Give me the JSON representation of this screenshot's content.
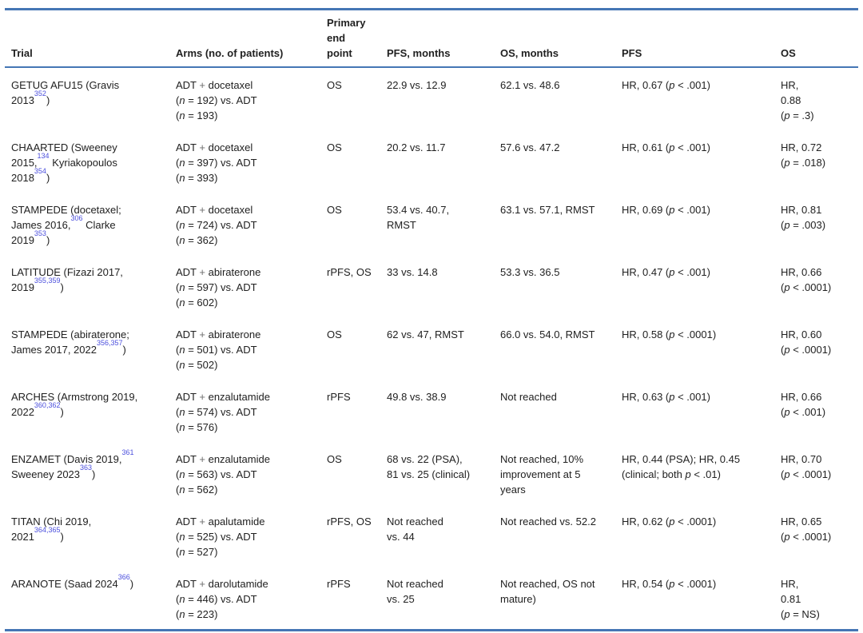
{
  "colors": {
    "rule_blue": "#4576b5",
    "ref_blue": "#4b4fdd",
    "text": "#212121",
    "plus_gray": "#6e6e6e"
  },
  "table": {
    "headers": [
      "Trial",
      "Arms (no. of patients)",
      "Primary end point",
      "PFS, months",
      "OS, months",
      "PFS",
      "OS"
    ],
    "rows": [
      {
        "trial": [
          {
            "t": "GETUG AFU15 (Gravis"
          },
          {
            "s": "br"
          },
          {
            "t": "2013"
          },
          {
            "t": "352",
            "s": "sup"
          },
          {
            "t": ")"
          }
        ],
        "arms": [
          {
            "t": "ADT "
          },
          {
            "t": "+",
            "s": "plus"
          },
          {
            "t": " docetaxel"
          },
          {
            "s": "br"
          },
          {
            "t": "("
          },
          {
            "t": "n",
            "s": "i"
          },
          {
            "t": " = 192) vs. ADT"
          },
          {
            "s": "br"
          },
          {
            "t": "("
          },
          {
            "t": "n",
            "s": "i"
          },
          {
            "t": " = 193)"
          }
        ],
        "endpoint": [
          {
            "t": "OS"
          }
        ],
        "pfs_months": [
          {
            "t": "22.9 vs. 12.9"
          }
        ],
        "os_months": [
          {
            "t": "62.1 vs. 48.6"
          }
        ],
        "pfs_hr": [
          {
            "t": "HR, 0.67 ("
          },
          {
            "t": "p",
            "s": "i"
          },
          {
            "t": " < .001)"
          }
        ],
        "os_hr": [
          {
            "t": "HR,"
          },
          {
            "s": "br"
          },
          {
            "t": "0.88"
          },
          {
            "s": "br"
          },
          {
            "t": "("
          },
          {
            "t": "p",
            "s": "i"
          },
          {
            "t": " = .3)"
          }
        ]
      },
      {
        "trial": [
          {
            "t": "CHAARTED (Sweeney"
          },
          {
            "s": "br"
          },
          {
            "t": "2015,"
          },
          {
            "t": "134",
            "s": "sup"
          },
          {
            "t": " Kyriakopoulos"
          },
          {
            "s": "br"
          },
          {
            "t": "2018"
          },
          {
            "t": "354",
            "s": "sup"
          },
          {
            "t": ")"
          }
        ],
        "arms": [
          {
            "t": "ADT "
          },
          {
            "t": "+",
            "s": "plus"
          },
          {
            "t": " docetaxel"
          },
          {
            "s": "br"
          },
          {
            "t": "("
          },
          {
            "t": "n",
            "s": "i"
          },
          {
            "t": " = 397) vs. ADT"
          },
          {
            "s": "br"
          },
          {
            "t": "("
          },
          {
            "t": "n",
            "s": "i"
          },
          {
            "t": " = 393)"
          }
        ],
        "endpoint": [
          {
            "t": "OS"
          }
        ],
        "pfs_months": [
          {
            "t": "20.2 vs. 11.7"
          }
        ],
        "os_months": [
          {
            "t": "57.6 vs. 47.2"
          }
        ],
        "pfs_hr": [
          {
            "t": "HR, 0.61 ("
          },
          {
            "t": "p",
            "s": "i"
          },
          {
            "t": " < .001)"
          }
        ],
        "os_hr": [
          {
            "t": "HR, 0.72"
          },
          {
            "s": "br"
          },
          {
            "t": "("
          },
          {
            "t": "p",
            "s": "i"
          },
          {
            "t": " = .018)"
          }
        ]
      },
      {
        "trial": [
          {
            "t": "STAMPEDE (docetaxel;"
          },
          {
            "s": "br"
          },
          {
            "t": "James 2016,"
          },
          {
            "t": "306",
            "s": "sup"
          },
          {
            "t": " Clarke"
          },
          {
            "s": "br"
          },
          {
            "t": "2019"
          },
          {
            "t": "353",
            "s": "sup"
          },
          {
            "t": ")"
          }
        ],
        "arms": [
          {
            "t": "ADT "
          },
          {
            "t": "+",
            "s": "plus"
          },
          {
            "t": " docetaxel"
          },
          {
            "s": "br"
          },
          {
            "t": "("
          },
          {
            "t": "n",
            "s": "i"
          },
          {
            "t": " = 724) vs. ADT"
          },
          {
            "s": "br"
          },
          {
            "t": "("
          },
          {
            "t": "n",
            "s": "i"
          },
          {
            "t": " = 362)"
          }
        ],
        "endpoint": [
          {
            "t": "OS"
          }
        ],
        "pfs_months": [
          {
            "t": "53.4 vs. 40.7,"
          },
          {
            "s": "br"
          },
          {
            "t": "RMST"
          }
        ],
        "os_months": [
          {
            "t": "63.1 vs. 57.1, RMST"
          }
        ],
        "pfs_hr": [
          {
            "t": "HR, 0.69 ("
          },
          {
            "t": "p",
            "s": "i"
          },
          {
            "t": " < .001)"
          }
        ],
        "os_hr": [
          {
            "t": "HR, 0.81"
          },
          {
            "s": "br"
          },
          {
            "t": "("
          },
          {
            "t": "p",
            "s": "i"
          },
          {
            "t": " = .003)"
          }
        ]
      },
      {
        "trial": [
          {
            "t": "LATITUDE (Fizazi 2017,"
          },
          {
            "s": "br"
          },
          {
            "t": "2019"
          },
          {
            "t": "355,359",
            "s": "sup"
          },
          {
            "t": ")"
          }
        ],
        "arms": [
          {
            "t": "ADT "
          },
          {
            "t": "+",
            "s": "plus"
          },
          {
            "t": " abiraterone"
          },
          {
            "s": "br"
          },
          {
            "t": "("
          },
          {
            "t": "n",
            "s": "i"
          },
          {
            "t": " = 597) vs. ADT"
          },
          {
            "s": "br"
          },
          {
            "t": "("
          },
          {
            "t": "n",
            "s": "i"
          },
          {
            "t": " = 602)"
          }
        ],
        "endpoint": [
          {
            "t": "rPFS, OS"
          }
        ],
        "pfs_months": [
          {
            "t": "33 vs. 14.8"
          }
        ],
        "os_months": [
          {
            "t": "53.3 vs. 36.5"
          }
        ],
        "pfs_hr": [
          {
            "t": "HR, 0.47 ("
          },
          {
            "t": "p",
            "s": "i"
          },
          {
            "t": " < .001)"
          }
        ],
        "os_hr": [
          {
            "t": "HR, 0.66"
          },
          {
            "s": "br"
          },
          {
            "t": "("
          },
          {
            "t": "p",
            "s": "i"
          },
          {
            "t": " < .0001)"
          }
        ]
      },
      {
        "trial": [
          {
            "t": "STAMPEDE (abiraterone;"
          },
          {
            "s": "br"
          },
          {
            "t": "James 2017, 2022"
          },
          {
            "t": "356,357",
            "s": "sup"
          },
          {
            "t": ")"
          }
        ],
        "arms": [
          {
            "t": "ADT "
          },
          {
            "t": "+",
            "s": "plus"
          },
          {
            "t": " abiraterone"
          },
          {
            "s": "br"
          },
          {
            "t": "("
          },
          {
            "t": "n",
            "s": "i"
          },
          {
            "t": " = 501) vs. ADT"
          },
          {
            "s": "br"
          },
          {
            "t": "("
          },
          {
            "t": "n",
            "s": "i"
          },
          {
            "t": " = 502)"
          }
        ],
        "endpoint": [
          {
            "t": "OS"
          }
        ],
        "pfs_months": [
          {
            "t": "62 vs. 47, RMST"
          }
        ],
        "os_months": [
          {
            "t": "66.0 vs. 54.0, RMST"
          }
        ],
        "pfs_hr": [
          {
            "t": "HR, 0.58 ("
          },
          {
            "t": "p",
            "s": "i"
          },
          {
            "t": " < .0001)"
          }
        ],
        "os_hr": [
          {
            "t": "HR, 0.60"
          },
          {
            "s": "br"
          },
          {
            "t": "("
          },
          {
            "t": "p",
            "s": "i"
          },
          {
            "t": " < .0001)"
          }
        ]
      },
      {
        "trial": [
          {
            "t": "ARCHES (Armstrong 2019,"
          },
          {
            "s": "br"
          },
          {
            "t": "2022"
          },
          {
            "t": "360,362",
            "s": "sup"
          },
          {
            "t": ")"
          }
        ],
        "arms": [
          {
            "t": "ADT "
          },
          {
            "t": "+",
            "s": "plus"
          },
          {
            "t": " enzalutamide"
          },
          {
            "s": "br"
          },
          {
            "t": "("
          },
          {
            "t": "n",
            "s": "i"
          },
          {
            "t": " = 574) vs. ADT"
          },
          {
            "s": "br"
          },
          {
            "t": "("
          },
          {
            "t": "n",
            "s": "i"
          },
          {
            "t": " = 576)"
          }
        ],
        "endpoint": [
          {
            "t": "rPFS"
          }
        ],
        "pfs_months": [
          {
            "t": "49.8 vs. 38.9"
          }
        ],
        "os_months": [
          {
            "t": "Not reached"
          }
        ],
        "pfs_hr": [
          {
            "t": "HR, 0.63 ("
          },
          {
            "t": "p",
            "s": "i"
          },
          {
            "t": " < .001)"
          }
        ],
        "os_hr": [
          {
            "t": "HR, 0.66"
          },
          {
            "s": "br"
          },
          {
            "t": "("
          },
          {
            "t": "p",
            "s": "i"
          },
          {
            "t": " < .001)"
          }
        ]
      },
      {
        "trial": [
          {
            "t": "ENZAMET (Davis 2019,"
          },
          {
            "t": "361",
            "s": "sup"
          },
          {
            "s": "br"
          },
          {
            "t": "Sweeney 2023"
          },
          {
            "t": "363",
            "s": "sup"
          },
          {
            "t": ")"
          }
        ],
        "arms": [
          {
            "t": "ADT "
          },
          {
            "t": "+",
            "s": "plus"
          },
          {
            "t": " enzalutamide"
          },
          {
            "s": "br"
          },
          {
            "t": "("
          },
          {
            "t": "n",
            "s": "i"
          },
          {
            "t": " = 563) vs. ADT"
          },
          {
            "s": "br"
          },
          {
            "t": "("
          },
          {
            "t": "n",
            "s": "i"
          },
          {
            "t": " = 562)"
          }
        ],
        "endpoint": [
          {
            "t": "OS"
          }
        ],
        "pfs_months": [
          {
            "t": "68 vs. 22 (PSA),"
          },
          {
            "s": "br"
          },
          {
            "t": "81 vs. 25 (clinical)"
          }
        ],
        "os_months": [
          {
            "t": "Not reached, 10%"
          },
          {
            "s": "br"
          },
          {
            "t": "improvement at 5"
          },
          {
            "s": "br"
          },
          {
            "t": "years"
          }
        ],
        "pfs_hr": [
          {
            "t": "HR, 0.44 (PSA); HR, 0.45"
          },
          {
            "s": "br"
          },
          {
            "t": "(clinical; both "
          },
          {
            "t": "p",
            "s": "i"
          },
          {
            "t": " < .01)"
          }
        ],
        "os_hr": [
          {
            "t": "HR, 0.70"
          },
          {
            "s": "br"
          },
          {
            "t": "("
          },
          {
            "t": "p",
            "s": "i"
          },
          {
            "t": " < .0001)"
          }
        ]
      },
      {
        "trial": [
          {
            "t": "TITAN (Chi 2019,"
          },
          {
            "s": "br"
          },
          {
            "t": "2021"
          },
          {
            "t": "364,365",
            "s": "sup"
          },
          {
            "t": ")"
          }
        ],
        "arms": [
          {
            "t": "ADT "
          },
          {
            "t": "+",
            "s": "plus"
          },
          {
            "t": " apalutamide"
          },
          {
            "s": "br"
          },
          {
            "t": "("
          },
          {
            "t": "n",
            "s": "i"
          },
          {
            "t": " = 525) vs. ADT"
          },
          {
            "s": "br"
          },
          {
            "t": "("
          },
          {
            "t": "n",
            "s": "i"
          },
          {
            "t": " = 527)"
          }
        ],
        "endpoint": [
          {
            "t": "rPFS, OS"
          }
        ],
        "pfs_months": [
          {
            "t": "Not reached"
          },
          {
            "s": "br"
          },
          {
            "t": "vs. 44"
          }
        ],
        "os_months": [
          {
            "t": "Not reached vs. 52.2"
          }
        ],
        "pfs_hr": [
          {
            "t": "HR, 0.62 ("
          },
          {
            "t": "p",
            "s": "i"
          },
          {
            "t": " < .0001)"
          }
        ],
        "os_hr": [
          {
            "t": "HR, 0.65"
          },
          {
            "s": "br"
          },
          {
            "t": "("
          },
          {
            "t": "p",
            "s": "i"
          },
          {
            "t": " < .0001)"
          }
        ]
      },
      {
        "trial": [
          {
            "t": "ARANOTE (Saad 2024"
          },
          {
            "t": "366",
            "s": "sup"
          },
          {
            "t": ")"
          }
        ],
        "arms": [
          {
            "t": "ADT "
          },
          {
            "t": "+",
            "s": "plus"
          },
          {
            "t": " darolutamide"
          },
          {
            "s": "br"
          },
          {
            "t": "("
          },
          {
            "t": "n",
            "s": "i"
          },
          {
            "t": " = 446) vs. ADT"
          },
          {
            "s": "br"
          },
          {
            "t": "("
          },
          {
            "t": "n",
            "s": "i"
          },
          {
            "t": " = 223)"
          }
        ],
        "endpoint": [
          {
            "t": "rPFS"
          }
        ],
        "pfs_months": [
          {
            "t": "Not reached"
          },
          {
            "s": "br"
          },
          {
            "t": "vs. 25"
          }
        ],
        "os_months": [
          {
            "t": "Not reached, OS not"
          },
          {
            "s": "br"
          },
          {
            "t": "mature)"
          }
        ],
        "pfs_hr": [
          {
            "t": "HR, 0.54 ("
          },
          {
            "t": "p",
            "s": "i"
          },
          {
            "t": " < .0001)"
          }
        ],
        "os_hr": [
          {
            "t": "HR,"
          },
          {
            "s": "br"
          },
          {
            "t": "0.81"
          },
          {
            "s": "br"
          },
          {
            "t": "("
          },
          {
            "t": "p",
            "s": "i"
          },
          {
            "t": " = NS)"
          }
        ]
      }
    ]
  }
}
